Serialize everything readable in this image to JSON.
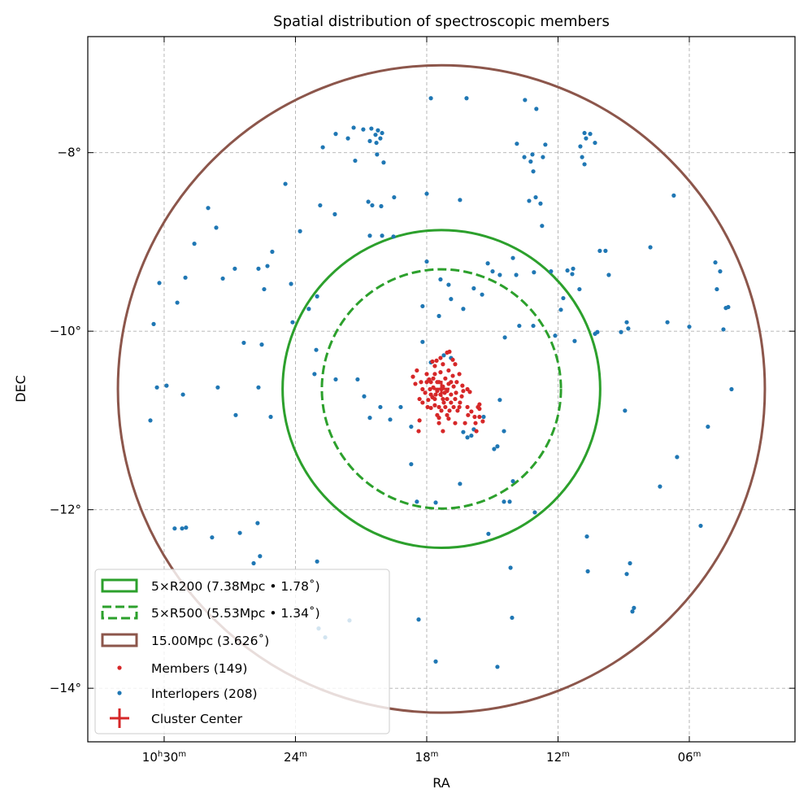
{
  "chart_data": {
    "type": "scatter",
    "title": "Spatial distribution of spectroscopic members",
    "xlabel": "RA",
    "ylabel": "DEC",
    "x_units": "minutes of RA past 10h (RA decreases to the right)",
    "xlim": [
      33.49,
      1.17
    ],
    "ylim": [
      -14.6,
      -6.7
    ],
    "grid": true,
    "legend_position": "lower-left",
    "x_ticks": [
      {
        "value": 30,
        "label": [
          "10",
          "h",
          "30",
          "m"
        ]
      },
      {
        "value": 24,
        "label": [
          "24",
          "m"
        ]
      },
      {
        "value": 18,
        "label": [
          "18",
          "m"
        ]
      },
      {
        "value": 12,
        "label": [
          "12",
          "m"
        ]
      },
      {
        "value": 6,
        "label": [
          "06",
          "m"
        ]
      }
    ],
    "y_ticks": [
      {
        "value": -8,
        "label": "−8°"
      },
      {
        "value": -10,
        "label": "−10°"
      },
      {
        "value": -12,
        "label": "−12°"
      },
      {
        "value": -14,
        "label": "−14°"
      }
    ],
    "center": {
      "ra": 17.33,
      "dec": -10.647
    },
    "circles": [
      {
        "name": "5×R200 (7.38Mpc • 1.78$^\\circ$)",
        "label": "5×R200 (7.38Mpc • 1.78˚)",
        "radius_deg": 1.78,
        "color": "#2ca02c",
        "style": "solid"
      },
      {
        "name": "5×R500",
        "label": "5×R500 (5.53Mpc • 1.34˚)",
        "radius_deg": 1.34,
        "color": "#2ca02c",
        "style": "dashed"
      },
      {
        "name": "15.00Mpc",
        "label": "15.00Mpc (3.626˚)",
        "radius_deg": 3.626,
        "color": "#8c564b",
        "style": "solid"
      }
    ],
    "series": [
      {
        "name": "Members",
        "label": "Members (149)",
        "color": "#d62728",
        "points": [
          [
            17.07,
            -10.24
          ],
          [
            16.96,
            -10.23
          ],
          [
            17.74,
            -10.34
          ],
          [
            18.45,
            -10.44
          ],
          [
            18.63,
            -10.51
          ],
          [
            18.26,
            -10.57
          ],
          [
            18.52,
            -10.59
          ],
          [
            18.07,
            -10.69
          ],
          [
            17.85,
            -10.65
          ],
          [
            16.7,
            -10.37
          ],
          [
            16.51,
            -10.48
          ],
          [
            16.37,
            -10.61
          ],
          [
            16.4,
            -10.73
          ],
          [
            16.48,
            -10.8
          ],
          [
            15.96,
            -10.9
          ],
          [
            15.59,
            -10.87
          ],
          [
            15.59,
            -10.96
          ],
          [
            15.77,
            -11.03
          ],
          [
            16.25,
            -11.03
          ],
          [
            16.7,
            -11.03
          ],
          [
            17.0,
            -10.98
          ],
          [
            17.44,
            -10.97
          ],
          [
            17.81,
            -10.86
          ],
          [
            18.19,
            -10.8
          ],
          [
            18.37,
            -11.12
          ],
          [
            18.33,
            -11.0
          ],
          [
            17.26,
            -11.12
          ],
          [
            16.11,
            -10.94
          ],
          [
            15.73,
            -11.12
          ],
          [
            15.59,
            -10.82
          ],
          [
            16.14,
            -10.85
          ],
          [
            17.63,
            -10.48
          ],
          [
            17.81,
            -10.57
          ],
          [
            17.44,
            -10.57
          ],
          [
            17.26,
            -10.62
          ],
          [
            17.07,
            -10.67
          ],
          [
            16.89,
            -10.71
          ],
          [
            17.26,
            -10.76
          ],
          [
            17.63,
            -10.76
          ],
          [
            17.44,
            -10.85
          ],
          [
            17.15,
            -10.85
          ],
          [
            16.89,
            -10.8
          ],
          [
            16.7,
            -10.76
          ],
          [
            17.52,
            -10.67
          ],
          [
            17.81,
            -10.71
          ],
          [
            17.15,
            -10.53
          ],
          [
            16.89,
            -10.57
          ],
          [
            17.37,
            -10.46
          ],
          [
            17.63,
            -10.39
          ],
          [
            18.0,
            -10.57
          ],
          [
            18.0,
            -10.48
          ],
          [
            16.63,
            -10.57
          ],
          [
            16.77,
            -10.62
          ],
          [
            17.0,
            -10.44
          ],
          [
            17.26,
            -10.37
          ],
          [
            17.55,
            -10.33
          ],
          [
            17.74,
            -10.74
          ],
          [
            17.93,
            -10.77
          ],
          [
            16.96,
            -10.89
          ],
          [
            16.59,
            -10.89
          ],
          [
            16.33,
            -10.67
          ],
          [
            16.14,
            -10.65
          ],
          [
            17.07,
            -10.94
          ],
          [
            17.33,
            -10.89
          ],
          [
            17.52,
            -10.94
          ],
          [
            18.19,
            -10.65
          ],
          [
            18.33,
            -10.76
          ],
          [
            16.77,
            -10.85
          ],
          [
            16.51,
            -10.85
          ],
          [
            17.37,
            -10.71
          ],
          [
            17.18,
            -10.69
          ],
          [
            17.7,
            -10.63
          ],
          [
            17.89,
            -10.54
          ],
          [
            16.81,
            -10.5
          ],
          [
            16.66,
            -10.69
          ],
          [
            17.63,
            -10.83
          ],
          [
            17.44,
            -11.03
          ],
          [
            15.81,
            -10.96
          ],
          [
            15.44,
            -11.01
          ],
          [
            16.03,
            -10.68
          ],
          [
            15.66,
            -10.85
          ],
          [
            16.81,
            -10.32
          ],
          [
            17.37,
            -10.3
          ],
          [
            17.96,
            -10.85
          ],
          [
            17.52,
            -10.57
          ],
          [
            17.33,
            -10.65
          ],
          [
            17.59,
            -10.71
          ],
          [
            17.07,
            -10.76
          ],
          [
            17.7,
            -10.53
          ],
          [
            17.22,
            -10.8
          ],
          [
            17.0,
            -10.59
          ]
        ]
      },
      {
        "name": "Interlopers",
        "label": "Interlopers (208)",
        "color": "#1f77b4",
        "points": [
          [
            17.81,
            -7.39
          ],
          [
            16.18,
            -7.39
          ],
          [
            13.51,
            -7.41
          ],
          [
            12.99,
            -7.51
          ],
          [
            21.34,
            -7.72
          ],
          [
            20.9,
            -7.74
          ],
          [
            20.53,
            -7.73
          ],
          [
            20.23,
            -7.75
          ],
          [
            20.04,
            -7.78
          ],
          [
            20.34,
            -7.8
          ],
          [
            20.12,
            -7.84
          ],
          [
            20.6,
            -7.87
          ],
          [
            20.3,
            -7.89
          ],
          [
            21.6,
            -7.84
          ],
          [
            22.16,
            -7.79
          ],
          [
            22.75,
            -7.94
          ],
          [
            20.27,
            -8.02
          ],
          [
            13.88,
            -7.9
          ],
          [
            12.58,
            -7.91
          ],
          [
            13.17,
            -8.02
          ],
          [
            13.54,
            -8.05
          ],
          [
            13.25,
            -8.1
          ],
          [
            12.69,
            -8.05
          ],
          [
            13.13,
            -8.21
          ],
          [
            10.79,
            -7.78
          ],
          [
            10.53,
            -7.79
          ],
          [
            10.72,
            -7.84
          ],
          [
            10.31,
            -7.89
          ],
          [
            10.98,
            -7.93
          ],
          [
            10.9,
            -8.05
          ],
          [
            10.79,
            -8.13
          ],
          [
            21.27,
            -8.09
          ],
          [
            19.97,
            -8.11
          ],
          [
            24.46,
            -8.35
          ],
          [
            18.0,
            -8.46
          ],
          [
            16.48,
            -8.53
          ],
          [
            13.02,
            -8.5
          ],
          [
            13.32,
            -8.54
          ],
          [
            12.8,
            -8.57
          ],
          [
            19.49,
            -8.5
          ],
          [
            20.67,
            -8.55
          ],
          [
            20.49,
            -8.59
          ],
          [
            20.08,
            -8.6
          ],
          [
            22.87,
            -8.59
          ],
          [
            22.2,
            -8.69
          ],
          [
            23.79,
            -8.88
          ],
          [
            6.71,
            -8.48
          ],
          [
            27.99,
            -8.62
          ],
          [
            27.62,
            -8.84
          ],
          [
            12.73,
            -8.82
          ],
          [
            20.6,
            -8.93
          ],
          [
            20.04,
            -8.93
          ],
          [
            19.52,
            -8.94
          ],
          [
            28.62,
            -9.02
          ],
          [
            25.06,
            -9.11
          ],
          [
            25.69,
            -9.3
          ],
          [
            25.28,
            -9.27
          ],
          [
            26.77,
            -9.3
          ],
          [
            25.43,
            -9.53
          ],
          [
            24.2,
            -9.47
          ],
          [
            30.22,
            -9.46
          ],
          [
            29.03,
            -9.4
          ],
          [
            27.32,
            -9.41
          ],
          [
            18.0,
            -9.22
          ],
          [
            17.37,
            -9.42
          ],
          [
            15.21,
            -9.24
          ],
          [
            14.99,
            -9.33
          ],
          [
            14.06,
            -9.18
          ],
          [
            13.91,
            -9.37
          ],
          [
            14.66,
            -9.37
          ],
          [
            13.1,
            -9.34
          ],
          [
            12.32,
            -9.33
          ],
          [
            11.57,
            -9.32
          ],
          [
            11.31,
            -9.3
          ],
          [
            11.35,
            -9.36
          ],
          [
            11.02,
            -9.53
          ],
          [
            11.76,
            -9.63
          ],
          [
            11.87,
            -9.76
          ],
          [
            10.09,
            -9.1
          ],
          [
            9.83,
            -9.1
          ],
          [
            9.68,
            -9.37
          ],
          [
            7.78,
            -9.06
          ],
          [
            4.81,
            -9.23
          ],
          [
            4.59,
            -9.33
          ],
          [
            4.74,
            -9.53
          ],
          [
            4.22,
            -9.73
          ],
          [
            4.33,
            -9.74
          ],
          [
            10.2,
            -10.01
          ],
          [
            10.31,
            -10.03
          ],
          [
            9.12,
            -10.01
          ],
          [
            8.86,
            -9.9
          ],
          [
            8.79,
            -9.97
          ],
          [
            7.0,
            -9.9
          ],
          [
            6.0,
            -9.95
          ],
          [
            4.44,
            -9.98
          ],
          [
            4.07,
            -10.65
          ],
          [
            29.4,
            -9.68
          ],
          [
            30.48,
            -9.92
          ],
          [
            23.39,
            -9.75
          ],
          [
            23.01,
            -9.61
          ],
          [
            18.19,
            -9.72
          ],
          [
            17.44,
            -9.83
          ],
          [
            16.89,
            -9.64
          ],
          [
            16.33,
            -9.75
          ],
          [
            15.85,
            -9.52
          ],
          [
            15.47,
            -9.59
          ],
          [
            17.0,
            -9.48
          ],
          [
            13.77,
            -9.94
          ],
          [
            13.13,
            -9.94
          ],
          [
            12.13,
            -10.05
          ],
          [
            11.24,
            -10.11
          ],
          [
            14.43,
            -10.07
          ],
          [
            26.36,
            -10.13
          ],
          [
            25.54,
            -10.15
          ],
          [
            23.05,
            -10.21
          ],
          [
            24.13,
            -9.9
          ],
          [
            23.13,
            -10.48
          ],
          [
            30.33,
            -10.63
          ],
          [
            29.89,
            -10.61
          ],
          [
            29.14,
            -10.71
          ],
          [
            27.55,
            -10.63
          ],
          [
            25.69,
            -10.63
          ],
          [
            22.16,
            -10.54
          ],
          [
            21.16,
            -10.54
          ],
          [
            20.86,
            -10.73
          ],
          [
            20.12,
            -10.85
          ],
          [
            19.67,
            -10.99
          ],
          [
            20.6,
            -10.97
          ],
          [
            19.19,
            -10.85
          ],
          [
            18.19,
            -10.12
          ],
          [
            17.81,
            -10.35
          ],
          [
            17.22,
            -10.27
          ],
          [
            16.89,
            -10.3
          ],
          [
            14.66,
            -10.77
          ],
          [
            15.4,
            -10.96
          ],
          [
            14.77,
            -11.29
          ],
          [
            14.92,
            -11.32
          ],
          [
            14.47,
            -11.12
          ],
          [
            15.85,
            -11.1
          ],
          [
            16.33,
            -11.13
          ],
          [
            16.14,
            -11.19
          ],
          [
            15.96,
            -11.17
          ],
          [
            18.71,
            -11.07
          ],
          [
            26.73,
            -10.94
          ],
          [
            25.13,
            -10.96
          ],
          [
            30.63,
            -11.0
          ],
          [
            8.94,
            -10.89
          ],
          [
            5.15,
            -11.07
          ],
          [
            6.56,
            -11.41
          ],
          [
            7.34,
            -11.74
          ],
          [
            18.71,
            -11.49
          ],
          [
            16.48,
            -11.71
          ],
          [
            18.45,
            -11.91
          ],
          [
            17.59,
            -11.92
          ],
          [
            14.47,
            -11.91
          ],
          [
            14.21,
            -11.91
          ],
          [
            14.06,
            -11.68
          ],
          [
            13.06,
            -12.03
          ],
          [
            15.18,
            -12.27
          ],
          [
            10.68,
            -12.3
          ],
          [
            5.48,
            -12.18
          ],
          [
            29.52,
            -12.21
          ],
          [
            29.18,
            -12.21
          ],
          [
            29.0,
            -12.2
          ],
          [
            27.81,
            -12.31
          ],
          [
            26.54,
            -12.26
          ],
          [
            25.73,
            -12.15
          ],
          [
            25.62,
            -12.52
          ],
          [
            25.91,
            -12.6
          ],
          [
            23.01,
            -12.58
          ],
          [
            14.17,
            -12.65
          ],
          [
            10.64,
            -12.69
          ],
          [
            8.71,
            -12.6
          ],
          [
            8.86,
            -12.72
          ],
          [
            8.53,
            -13.1
          ],
          [
            8.6,
            -13.14
          ],
          [
            14.1,
            -13.21
          ],
          [
            18.37,
            -13.23
          ],
          [
            14.77,
            -13.76
          ],
          [
            17.59,
            -13.7
          ],
          [
            22.94,
            -13.33
          ],
          [
            22.64,
            -13.43
          ],
          [
            21.53,
            -13.24
          ]
        ]
      }
    ],
    "center_marker": {
      "label": "Cluster Center",
      "color": "#d62728"
    }
  }
}
